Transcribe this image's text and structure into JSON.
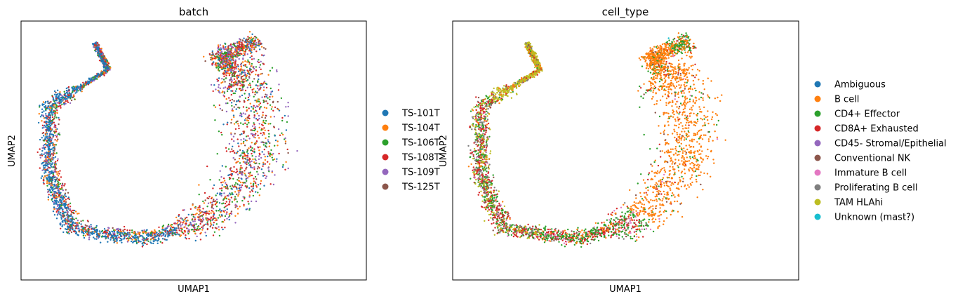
{
  "chart_data": [
    {
      "type": "scatter",
      "title": "batch",
      "xlabel": "UMAP1",
      "ylabel": "UMAP2",
      "grid": false,
      "ticks": false,
      "legend_position": "right",
      "series": [
        {
          "name": "TS-101T",
          "color": "#1f77b4"
        },
        {
          "name": "TS-104T",
          "color": "#ff7f0e"
        },
        {
          "name": "TS-106T",
          "color": "#2ca02c"
        },
        {
          "name": "TS-108T",
          "color": "#d62728"
        },
        {
          "name": "TS-109T",
          "color": "#9467bd"
        },
        {
          "name": "TS-125T",
          "color": "#8c564b"
        }
      ]
    },
    {
      "type": "scatter",
      "title": "cell_type",
      "xlabel": "UMAP1",
      "ylabel": "UMAP2",
      "grid": false,
      "ticks": false,
      "legend_position": "right",
      "series": [
        {
          "name": "Ambiguous",
          "color": "#1f77b4"
        },
        {
          "name": "B cell",
          "color": "#ff7f0e"
        },
        {
          "name": "CD4+ Effector",
          "color": "#2ca02c"
        },
        {
          "name": "CD8A+ Exhausted",
          "color": "#d62728"
        },
        {
          "name": "CD45- Stromal/Epithelial",
          "color": "#9467bd"
        },
        {
          "name": "Conventional NK",
          "color": "#8c564b"
        },
        {
          "name": "Immature B cell",
          "color": "#e377c2"
        },
        {
          "name": "Proliferating B cell",
          "color": "#7f7f7f"
        },
        {
          "name": "TAM HLAhi",
          "color": "#bcbd22"
        },
        {
          "name": "Unknown (mast?)",
          "color": "#17becf"
        }
      ]
    }
  ]
}
